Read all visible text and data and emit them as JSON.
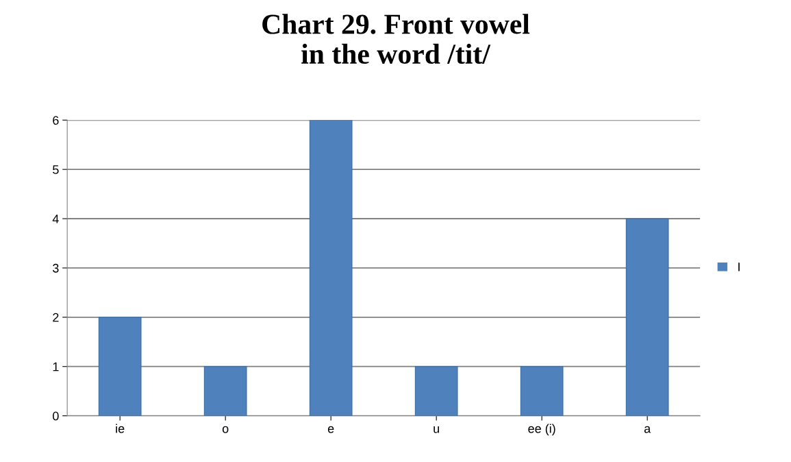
{
  "chart_data": {
    "type": "bar",
    "title": "Chart 29. Front vowel\nin the word /tit/",
    "categories": [
      "ie",
      "o",
      "e",
      "u",
      "ee (i)",
      "a"
    ],
    "series": [
      {
        "name": "I",
        "color": "#4f81bd",
        "values": [
          2,
          1,
          6,
          1,
          1,
          4
        ]
      }
    ],
    "ylim": [
      0,
      6
    ],
    "yticks": [
      0,
      1,
      2,
      3,
      4,
      5,
      6
    ],
    "grid": "y",
    "legend": "right"
  }
}
